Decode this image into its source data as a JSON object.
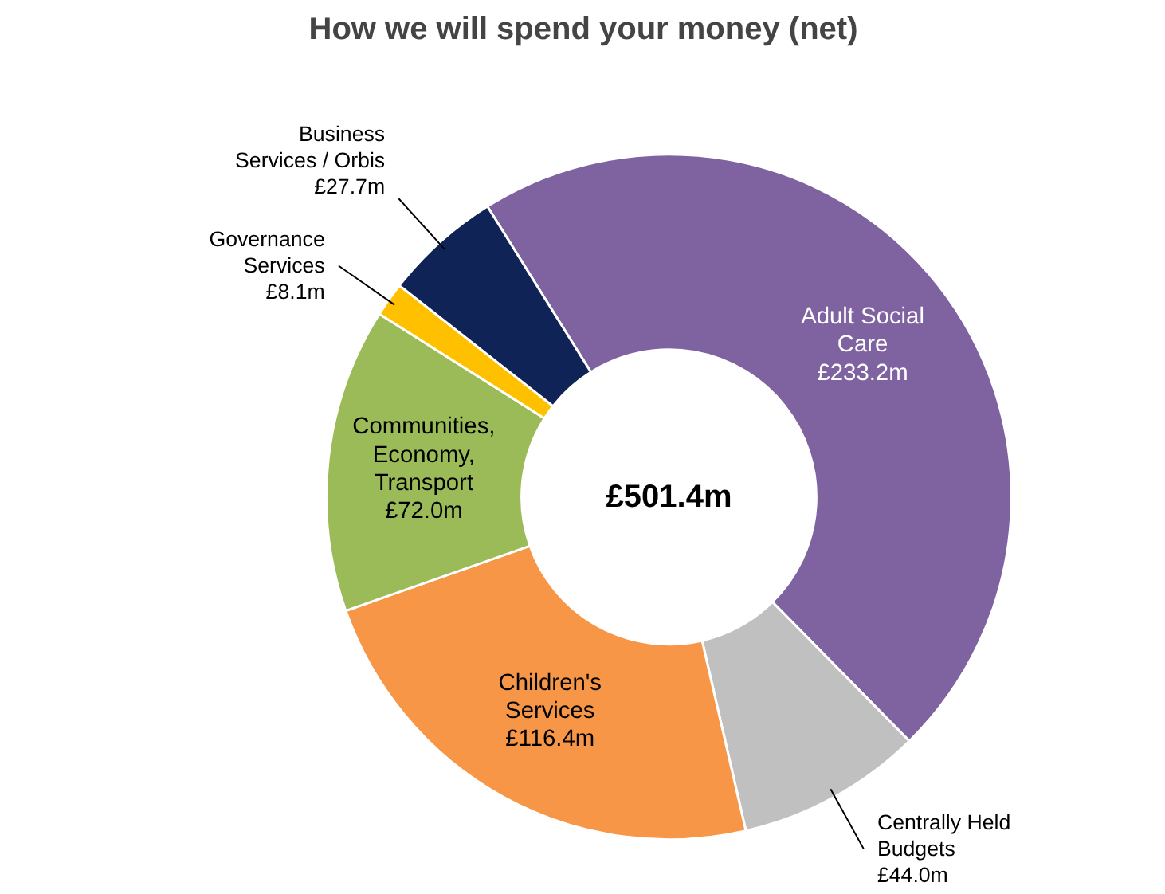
{
  "chart_data": {
    "type": "donut",
    "title": "How we will spend your money (net)",
    "categories": [
      "Adult Social Care",
      "Centrally Held Budgets",
      "Children's Services",
      "Communities, Economy, Transport",
      "Governance Services",
      "Business Services / Orbis"
    ],
    "values": [
      233.2,
      44.0,
      116.4,
      72.0,
      8.1,
      27.7
    ],
    "value_labels": [
      "£233.2m",
      "£44.0m",
      "£116.4m",
      "£72.0m",
      "£8.1m",
      "£27.7m"
    ],
    "colors": [
      "#7f63a1",
      "#c0c0c0",
      "#f79646",
      "#9bbb59",
      "#ffc000",
      "#0f2356"
    ],
    "annotations": [
      "£501.4m"
    ]
  }
}
